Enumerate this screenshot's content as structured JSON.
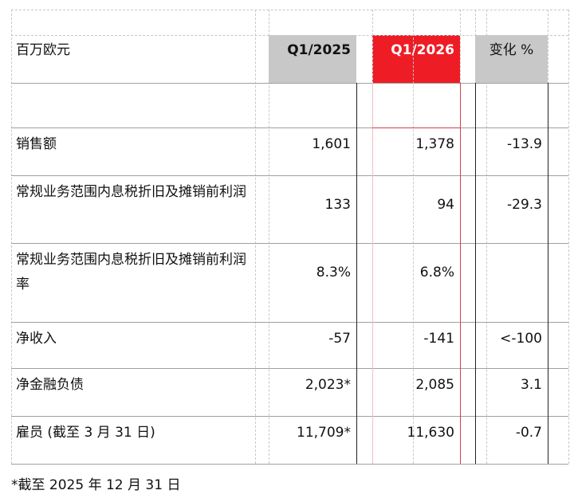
{
  "header": {
    "label": "百万欧元",
    "columns": [
      "Q1/2025",
      "Q1/2026",
      "变化 %"
    ]
  },
  "rows": [
    {
      "label": "销售额",
      "values": [
        "1,601",
        "1,378",
        "-13.9"
      ]
    },
    {
      "label": "常规业务范围内息税折旧及摊销前利润",
      "values": [
        "133",
        "94",
        "-29.3"
      ]
    },
    {
      "label": "常规业务范围内息税折旧及摊销前利润率",
      "values": [
        "8.3%",
        "6.8%",
        null
      ]
    },
    {
      "label": "净收入",
      "values": [
        "-57",
        "-141",
        "<-100"
      ]
    },
    {
      "label": "净金融负债",
      "values": [
        "2,023*",
        "2,085",
        "3.1"
      ]
    },
    {
      "label": "雇员 (截至 3 月 31 日)",
      "values": [
        "11,709*",
        "11,630",
        "-0.7"
      ]
    }
  ],
  "footnote": "*截至 2025 年 12 月 31 日"
}
